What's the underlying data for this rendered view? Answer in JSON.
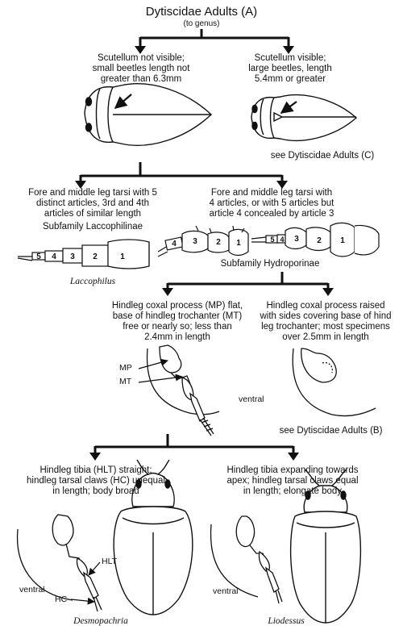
{
  "title": "Dytiscidae Adults (A)",
  "subtitle": "(to genus)",
  "couplet1": {
    "left": [
      "Scutellum not visible;",
      "small beetles length not",
      "greater than 6.3mm"
    ],
    "right": [
      "Scutellum visible;",
      "large beetles, length",
      "5.4mm or greater"
    ],
    "right_ref": "see Dytiscidae Adults (C)"
  },
  "couplet2": {
    "left": [
      "Fore and middle leg tarsi with 5",
      "distinct articles, 3rd and 4th",
      "articles of similar length"
    ],
    "left_group": "Subfamily Laccophilinae",
    "left_taxon": "Laccophilus",
    "right": [
      "Fore and middle leg tarsi with",
      "4 articles, or with 5 articles but",
      "article 4 concealed by article 3"
    ],
    "right_group": "Subfamily Hydroporinae",
    "tarsus_left_numbers": [
      "5",
      "4",
      "3",
      "2",
      "1"
    ],
    "tarsus_a_numbers": [
      "4",
      "3",
      "2",
      "1"
    ],
    "tarsus_b_numbers": [
      "5",
      "4",
      "3",
      "2",
      "1"
    ]
  },
  "couplet3": {
    "left": [
      "Hindleg coxal process (MP) flat,",
      "base of hindleg trochanter (MT)",
      "free or nearly so; less than",
      "2.4mm in length"
    ],
    "right": [
      "Hindleg coxal process raised",
      "with sides covering base of hind",
      "leg trochanter; most specimens",
      "over 2.5mm in length"
    ],
    "label_mp": "MP",
    "label_mt": "MT",
    "view": "ventral",
    "right_ref": "see Dytiscidae Adults (B)"
  },
  "couplet4": {
    "left": [
      "Hindleg tibia (HLT) straight;",
      "hindleg tarsal claws (HC) unequal",
      "in length; body broad"
    ],
    "right": [
      "Hindleg tibia expanding towards",
      "apex; hindleg tarsal claws equal",
      "in length; elongate body"
    ],
    "label_hlt": "HLT",
    "label_hc": "HC",
    "view_left": "ventral",
    "view_right": "ventral",
    "left_taxon": "Desmopachria",
    "right_taxon": "Liodessus"
  }
}
